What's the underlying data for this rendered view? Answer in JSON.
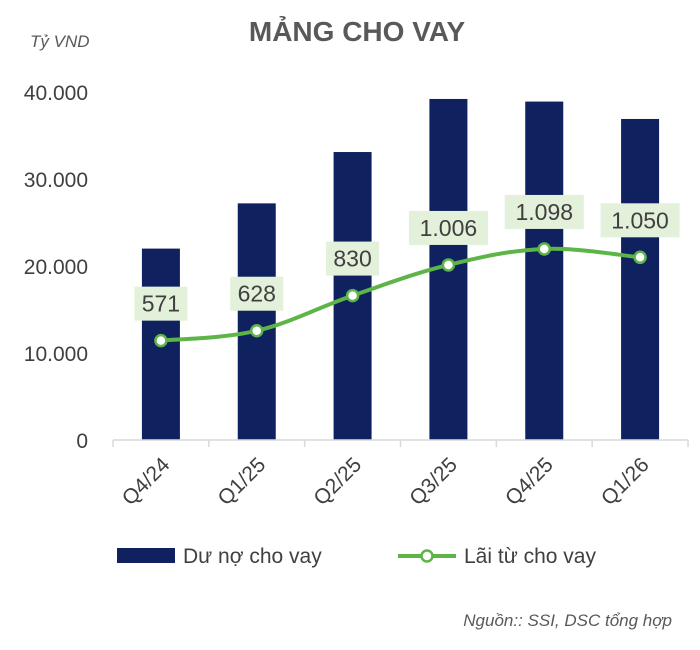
{
  "chart_data": {
    "type": "bar",
    "title": "MẢNG CHO VAY",
    "unit_label": "Tỷ VND",
    "categories": [
      "Q4/24",
      "Q1/25",
      "Q2/25",
      "Q3/25",
      "Q4/25",
      "Q1/26"
    ],
    "series": [
      {
        "name": "Dư nợ cho vay",
        "type": "bar",
        "color": "#10215f",
        "values": [
          22000,
          27200,
          33100,
          39200,
          38900,
          36900
        ]
      },
      {
        "name": "Lãi từ cho vay",
        "type": "line",
        "color": "#5db548",
        "values": [
          571,
          628,
          830,
          1006,
          1098,
          1050
        ],
        "data_labels": [
          "571",
          "628",
          "830",
          "1.006",
          "1.098",
          "1.050"
        ]
      }
    ],
    "ylim": [
      0,
      40000
    ],
    "yticks": [
      0,
      10000,
      20000,
      30000,
      40000
    ],
    "ytick_labels": [
      "0",
      "10.000",
      "20.000",
      "30.000",
      "40.000"
    ],
    "secondary_ylim": [
      0,
      2000
    ],
    "grid": false,
    "legend_position": "bottom",
    "source": "Nguồn:: SSI, DSC tổng hợp"
  }
}
